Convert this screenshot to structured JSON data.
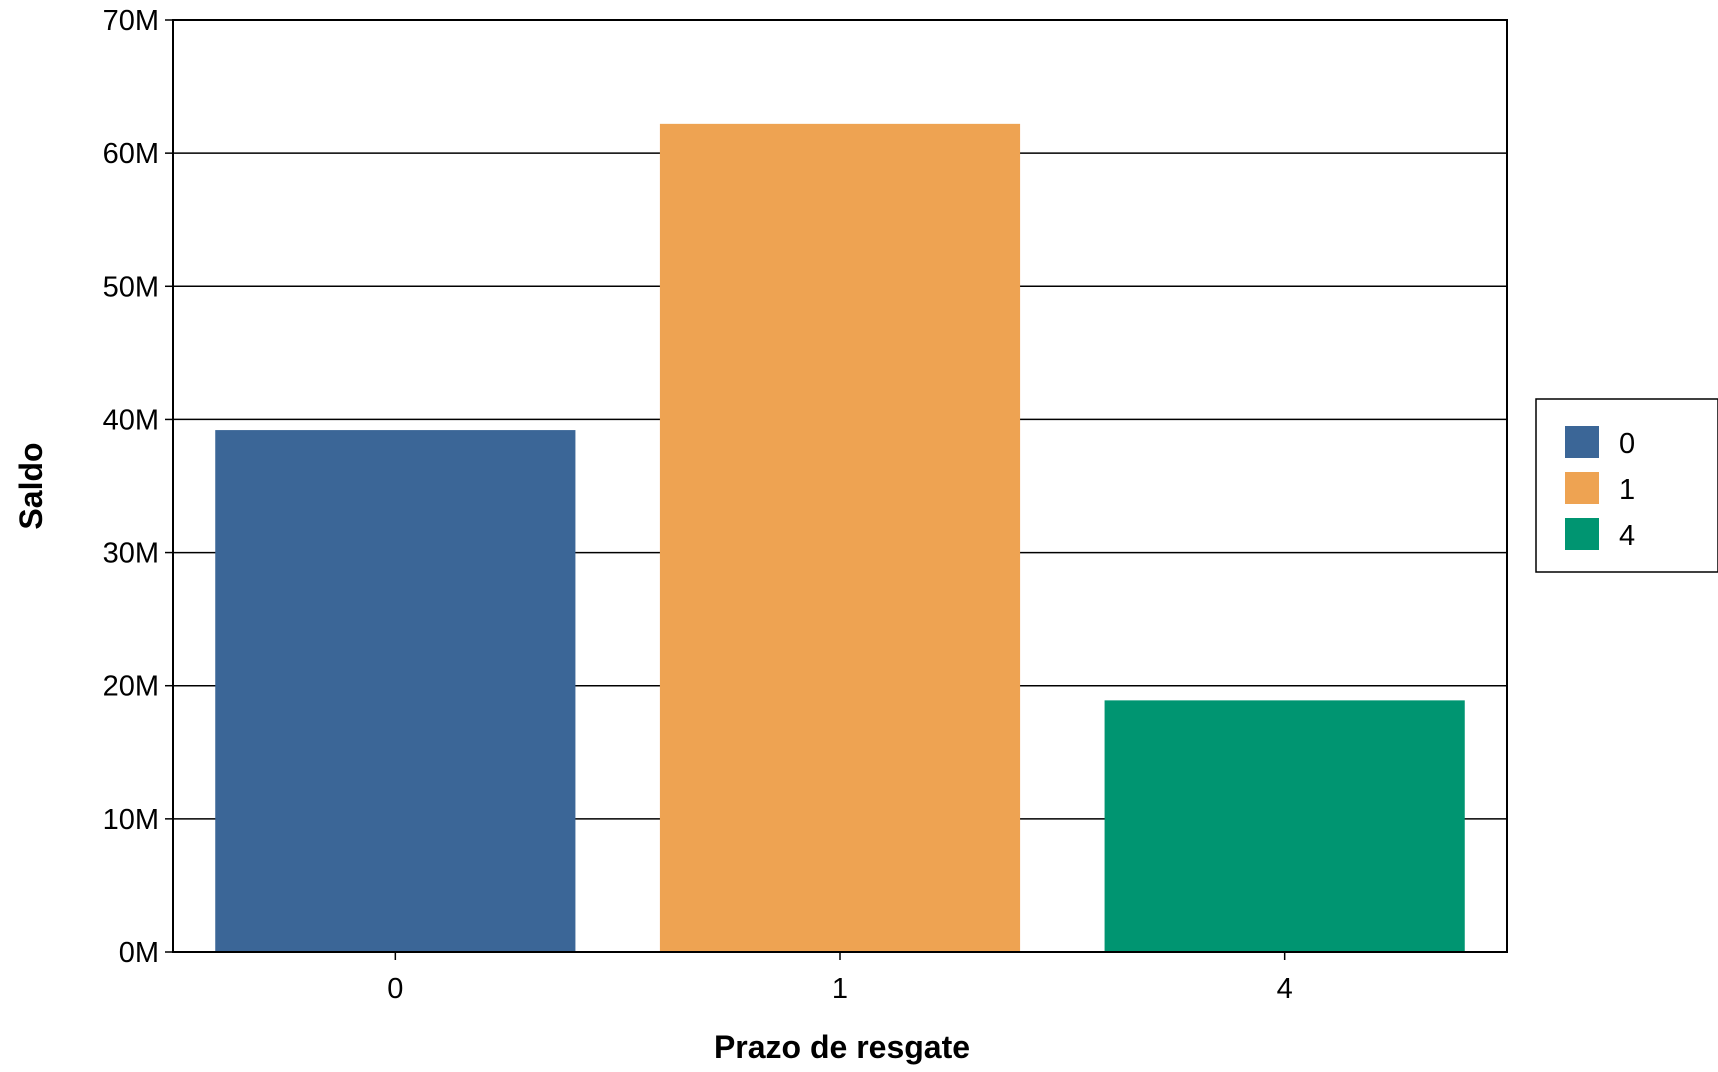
{
  "chart_data": {
    "type": "bar",
    "categories": [
      "0",
      "1",
      "4"
    ],
    "values": [
      39200000,
      62200000,
      18900000
    ],
    "colors": [
      "#3b6697",
      "#eea352",
      "#009571"
    ],
    "xlabel": "Prazo de resgate",
    "ylabel": "Saldo",
    "ylim": [
      0,
      70000000
    ],
    "yticks": [
      "0M",
      "10M",
      "20M",
      "30M",
      "40M",
      "50M",
      "60M",
      "70M"
    ],
    "grid": true,
    "legend": {
      "placement": "right",
      "entries": [
        "0",
        "1",
        "4"
      ]
    }
  }
}
